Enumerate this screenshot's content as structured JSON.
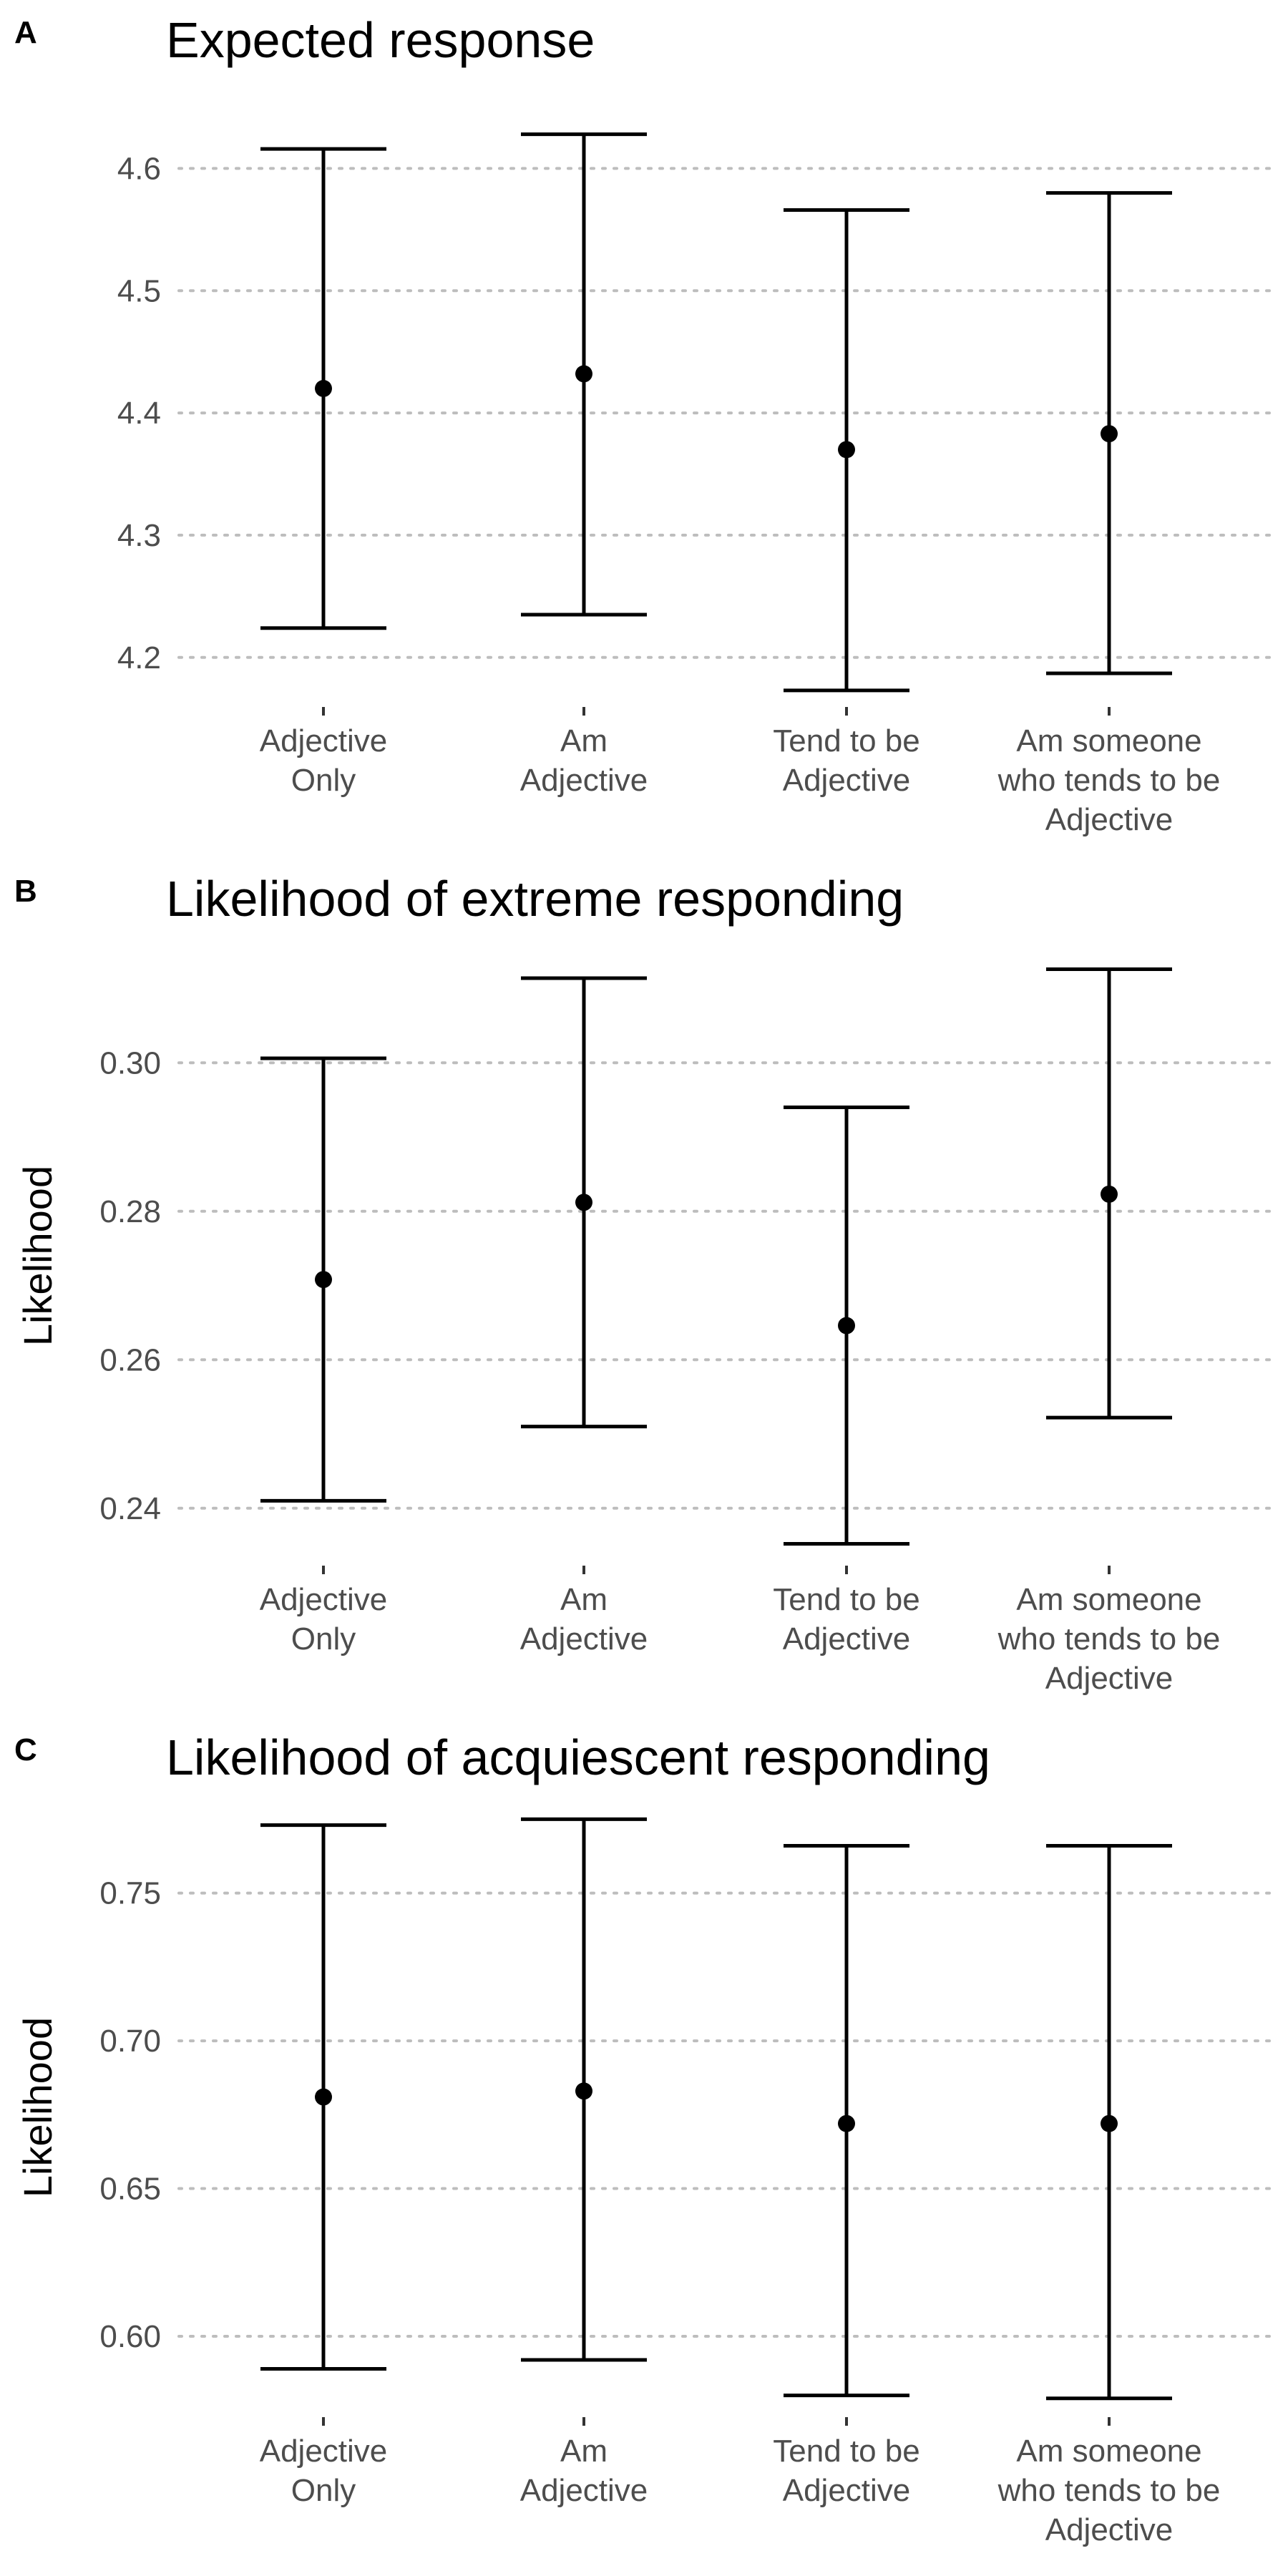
{
  "chart_data": [
    {
      "type": "errorbar",
      "panel_label": "A",
      "title": "Expected response",
      "ylabel": "",
      "ylim": [
        4.17,
        4.65
      ],
      "yticks": [
        4.2,
        4.3,
        4.4,
        4.5,
        4.6
      ],
      "tick_labels": [
        "4.2",
        "4.3",
        "4.4",
        "4.5",
        "4.6"
      ],
      "grid": "horizontal-dotted",
      "categories": [
        [
          "Adjective",
          "Only"
        ],
        [
          "Am",
          "Adjective"
        ],
        [
          "Tend to be",
          "Adjective"
        ],
        [
          "Am someone",
          "who tends to be",
          "Adjective"
        ]
      ],
      "values": [
        4.42,
        4.432,
        4.37,
        4.383
      ],
      "lower": [
        4.224,
        4.235,
        4.173,
        4.187
      ],
      "upper": [
        4.616,
        4.628,
        4.566,
        4.58
      ]
    },
    {
      "type": "errorbar",
      "panel_label": "B",
      "title": "Likelihood of extreme responding",
      "ylabel": "Likelihood",
      "ylim": [
        0.234,
        0.314
      ],
      "yticks": [
        0.24,
        0.26,
        0.28,
        0.3
      ],
      "tick_labels": [
        "0.24",
        "0.26",
        "0.28",
        "0.30"
      ],
      "grid": "horizontal-dotted",
      "categories": [
        [
          "Adjective",
          "Only"
        ],
        [
          "Am",
          "Adjective"
        ],
        [
          "Tend to be",
          "Adjective"
        ],
        [
          "Am someone",
          "who tends to be",
          "Adjective"
        ]
      ],
      "values": [
        0.2708,
        0.2812,
        0.2646,
        0.2823
      ],
      "lower": [
        0.241,
        0.251,
        0.2352,
        0.2522
      ],
      "upper": [
        0.3006,
        0.3114,
        0.294,
        0.3126
      ]
    },
    {
      "type": "errorbar",
      "panel_label": "C",
      "title": "Likelihood of acquiescent responding",
      "ylabel": "Likelihood",
      "ylim": [
        0.577,
        0.778
      ],
      "yticks": [
        0.6,
        0.65,
        0.7,
        0.75
      ],
      "tick_labels": [
        "0.60",
        "0.65",
        "0.70",
        "0.75"
      ],
      "grid": "horizontal-dotted",
      "categories": [
        [
          "Adjective",
          "Only"
        ],
        [
          "Am",
          "Adjective"
        ],
        [
          "Tend to be",
          "Adjective"
        ],
        [
          "Am someone",
          "who tends to be",
          "Adjective"
        ]
      ],
      "values": [
        0.681,
        0.683,
        0.672,
        0.672
      ],
      "lower": [
        0.589,
        0.592,
        0.58,
        0.579
      ],
      "upper": [
        0.773,
        0.775,
        0.766,
        0.766
      ]
    }
  ]
}
